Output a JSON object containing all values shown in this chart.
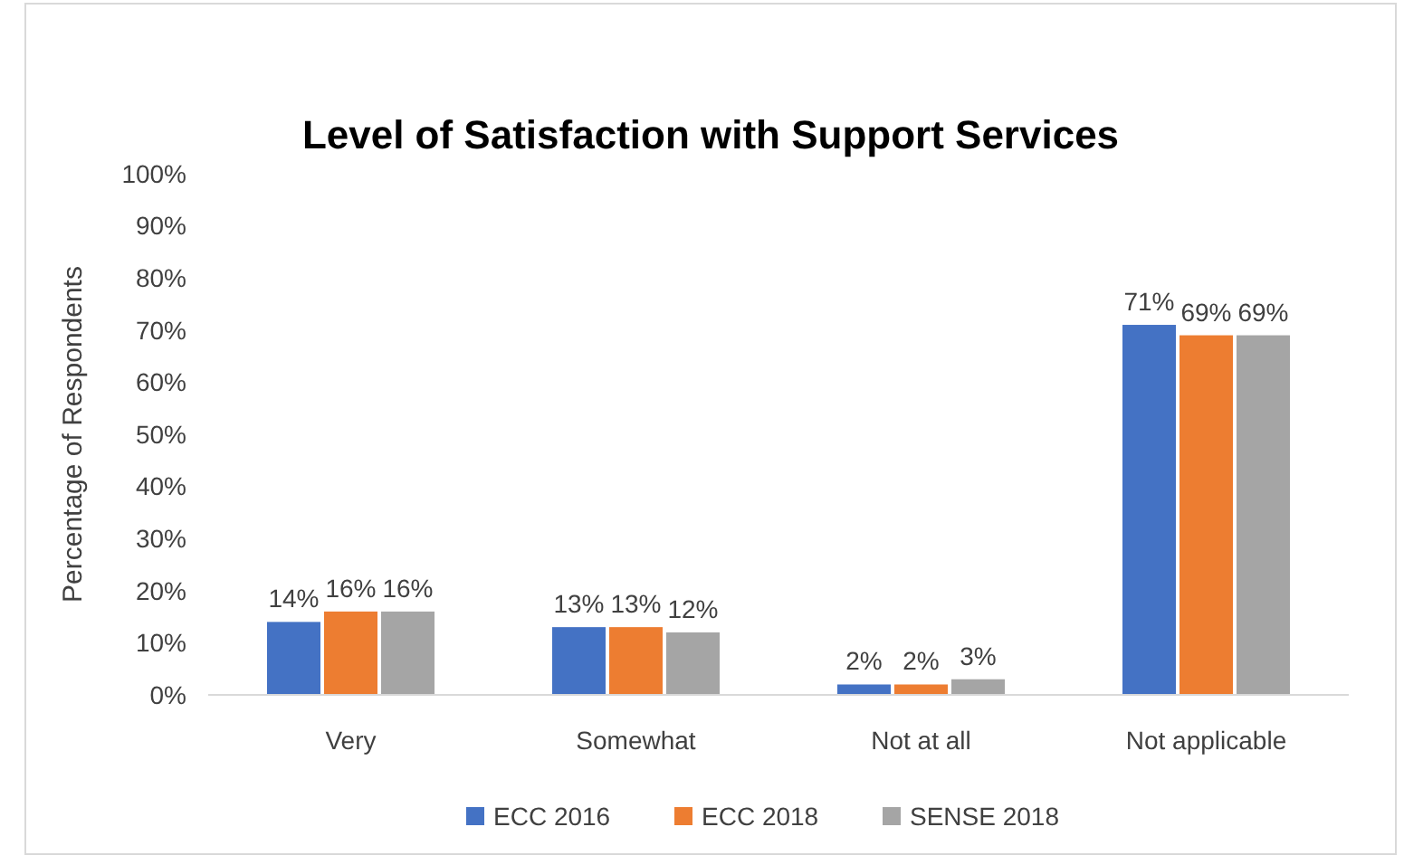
{
  "chart_data": {
    "type": "bar",
    "title": "Level of Satisfaction with Support Services",
    "ylabel": "Percentage of Respondents",
    "categories": [
      "Very",
      "Somewhat",
      "Not at all",
      "Not applicable"
    ],
    "series": [
      {
        "name": "ECC 2016",
        "color": "#4472c4",
        "values": [
          14,
          13,
          2,
          71
        ]
      },
      {
        "name": "ECC 2018",
        "color": "#ed7d31",
        "values": [
          16,
          13,
          2,
          69
        ]
      },
      {
        "name": "SENSE 2018",
        "color": "#a5a5a5",
        "values": [
          16,
          12,
          3,
          69
        ]
      }
    ],
    "ylim": [
      0,
      100
    ],
    "yticks": [
      {
        "value": 0,
        "label": "0%"
      },
      {
        "value": 10,
        "label": "10%"
      },
      {
        "value": 20,
        "label": "20%"
      },
      {
        "value": 30,
        "label": "30%"
      },
      {
        "value": 40,
        "label": "40%"
      },
      {
        "value": 50,
        "label": "50%"
      },
      {
        "value": 60,
        "label": "60%"
      },
      {
        "value": 70,
        "label": "70%"
      },
      {
        "value": 80,
        "label": "80%"
      },
      {
        "value": 90,
        "label": "90%"
      },
      {
        "value": 100,
        "label": "100%"
      }
    ],
    "value_labels": [
      [
        "14%",
        "13%",
        "2%",
        "71%"
      ],
      [
        "16%",
        "13%",
        "2%",
        "69%"
      ],
      [
        "16%",
        "12%",
        "3%",
        "69%"
      ]
    ],
    "grid": false,
    "legend": "bottom"
  }
}
